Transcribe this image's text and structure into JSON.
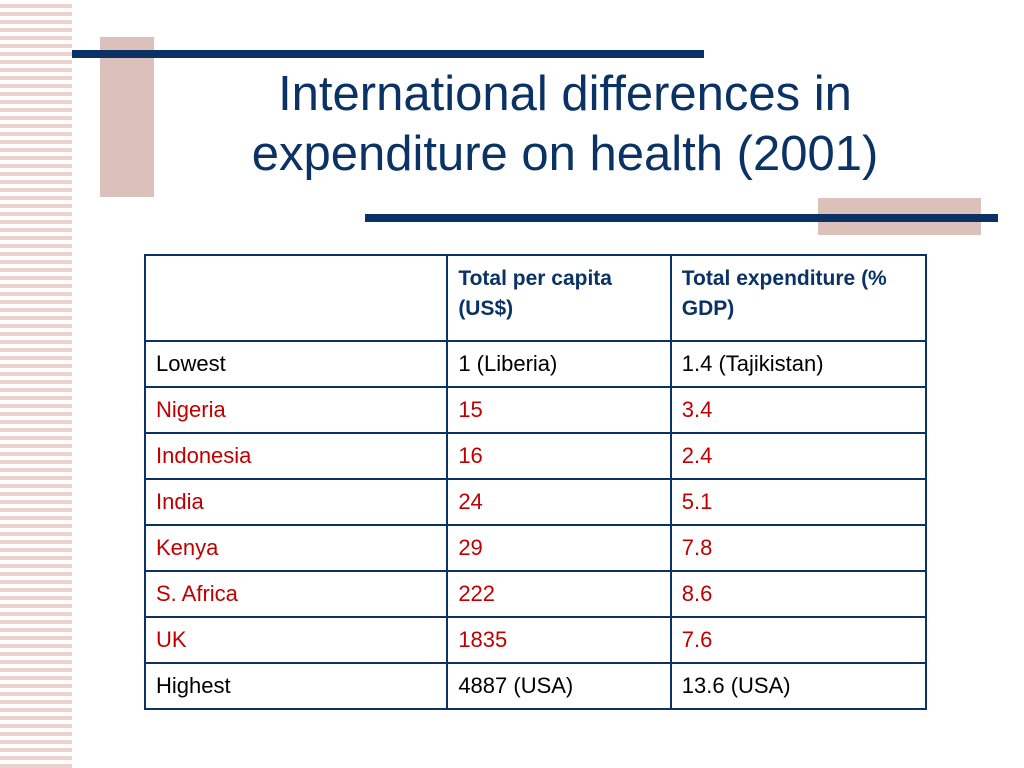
{
  "title": "International differences in expenditure on health (2001)",
  "table": {
    "header": [
      "",
      "Total per capita (US$)",
      "Total expenditure (% GDP)"
    ],
    "rows": [
      {
        "country": "Lowest",
        "per_capita": "1 (Liberia)",
        "pct_gdp": "1.4 (Tajikistan)",
        "highlight": false
      },
      {
        "country": "Nigeria",
        "per_capita": "15",
        "pct_gdp": "3.4",
        "highlight": true
      },
      {
        "country": "Indonesia",
        "per_capita": "16",
        "pct_gdp": "2.4",
        "highlight": true
      },
      {
        "country": "India",
        "per_capita": "24",
        "pct_gdp": "5.1",
        "highlight": true
      },
      {
        "country": "Kenya",
        "per_capita": "29",
        "pct_gdp": "7.8",
        "highlight": true
      },
      {
        "country": "S. Africa",
        "per_capita": "222",
        "pct_gdp": "8.6",
        "highlight": true
      },
      {
        "country": "UK",
        "per_capita": "1835",
        "pct_gdp": "7.6",
        "highlight": true
      },
      {
        "country": "Highest",
        "per_capita": "4887 (USA)",
        "pct_gdp": "13.6 (USA)",
        "highlight": false
      }
    ]
  },
  "colors": {
    "title": "#0a3264",
    "highlight_text": "#c00000",
    "normal_text": "#000000",
    "accent_block": "#dbc1b9"
  }
}
